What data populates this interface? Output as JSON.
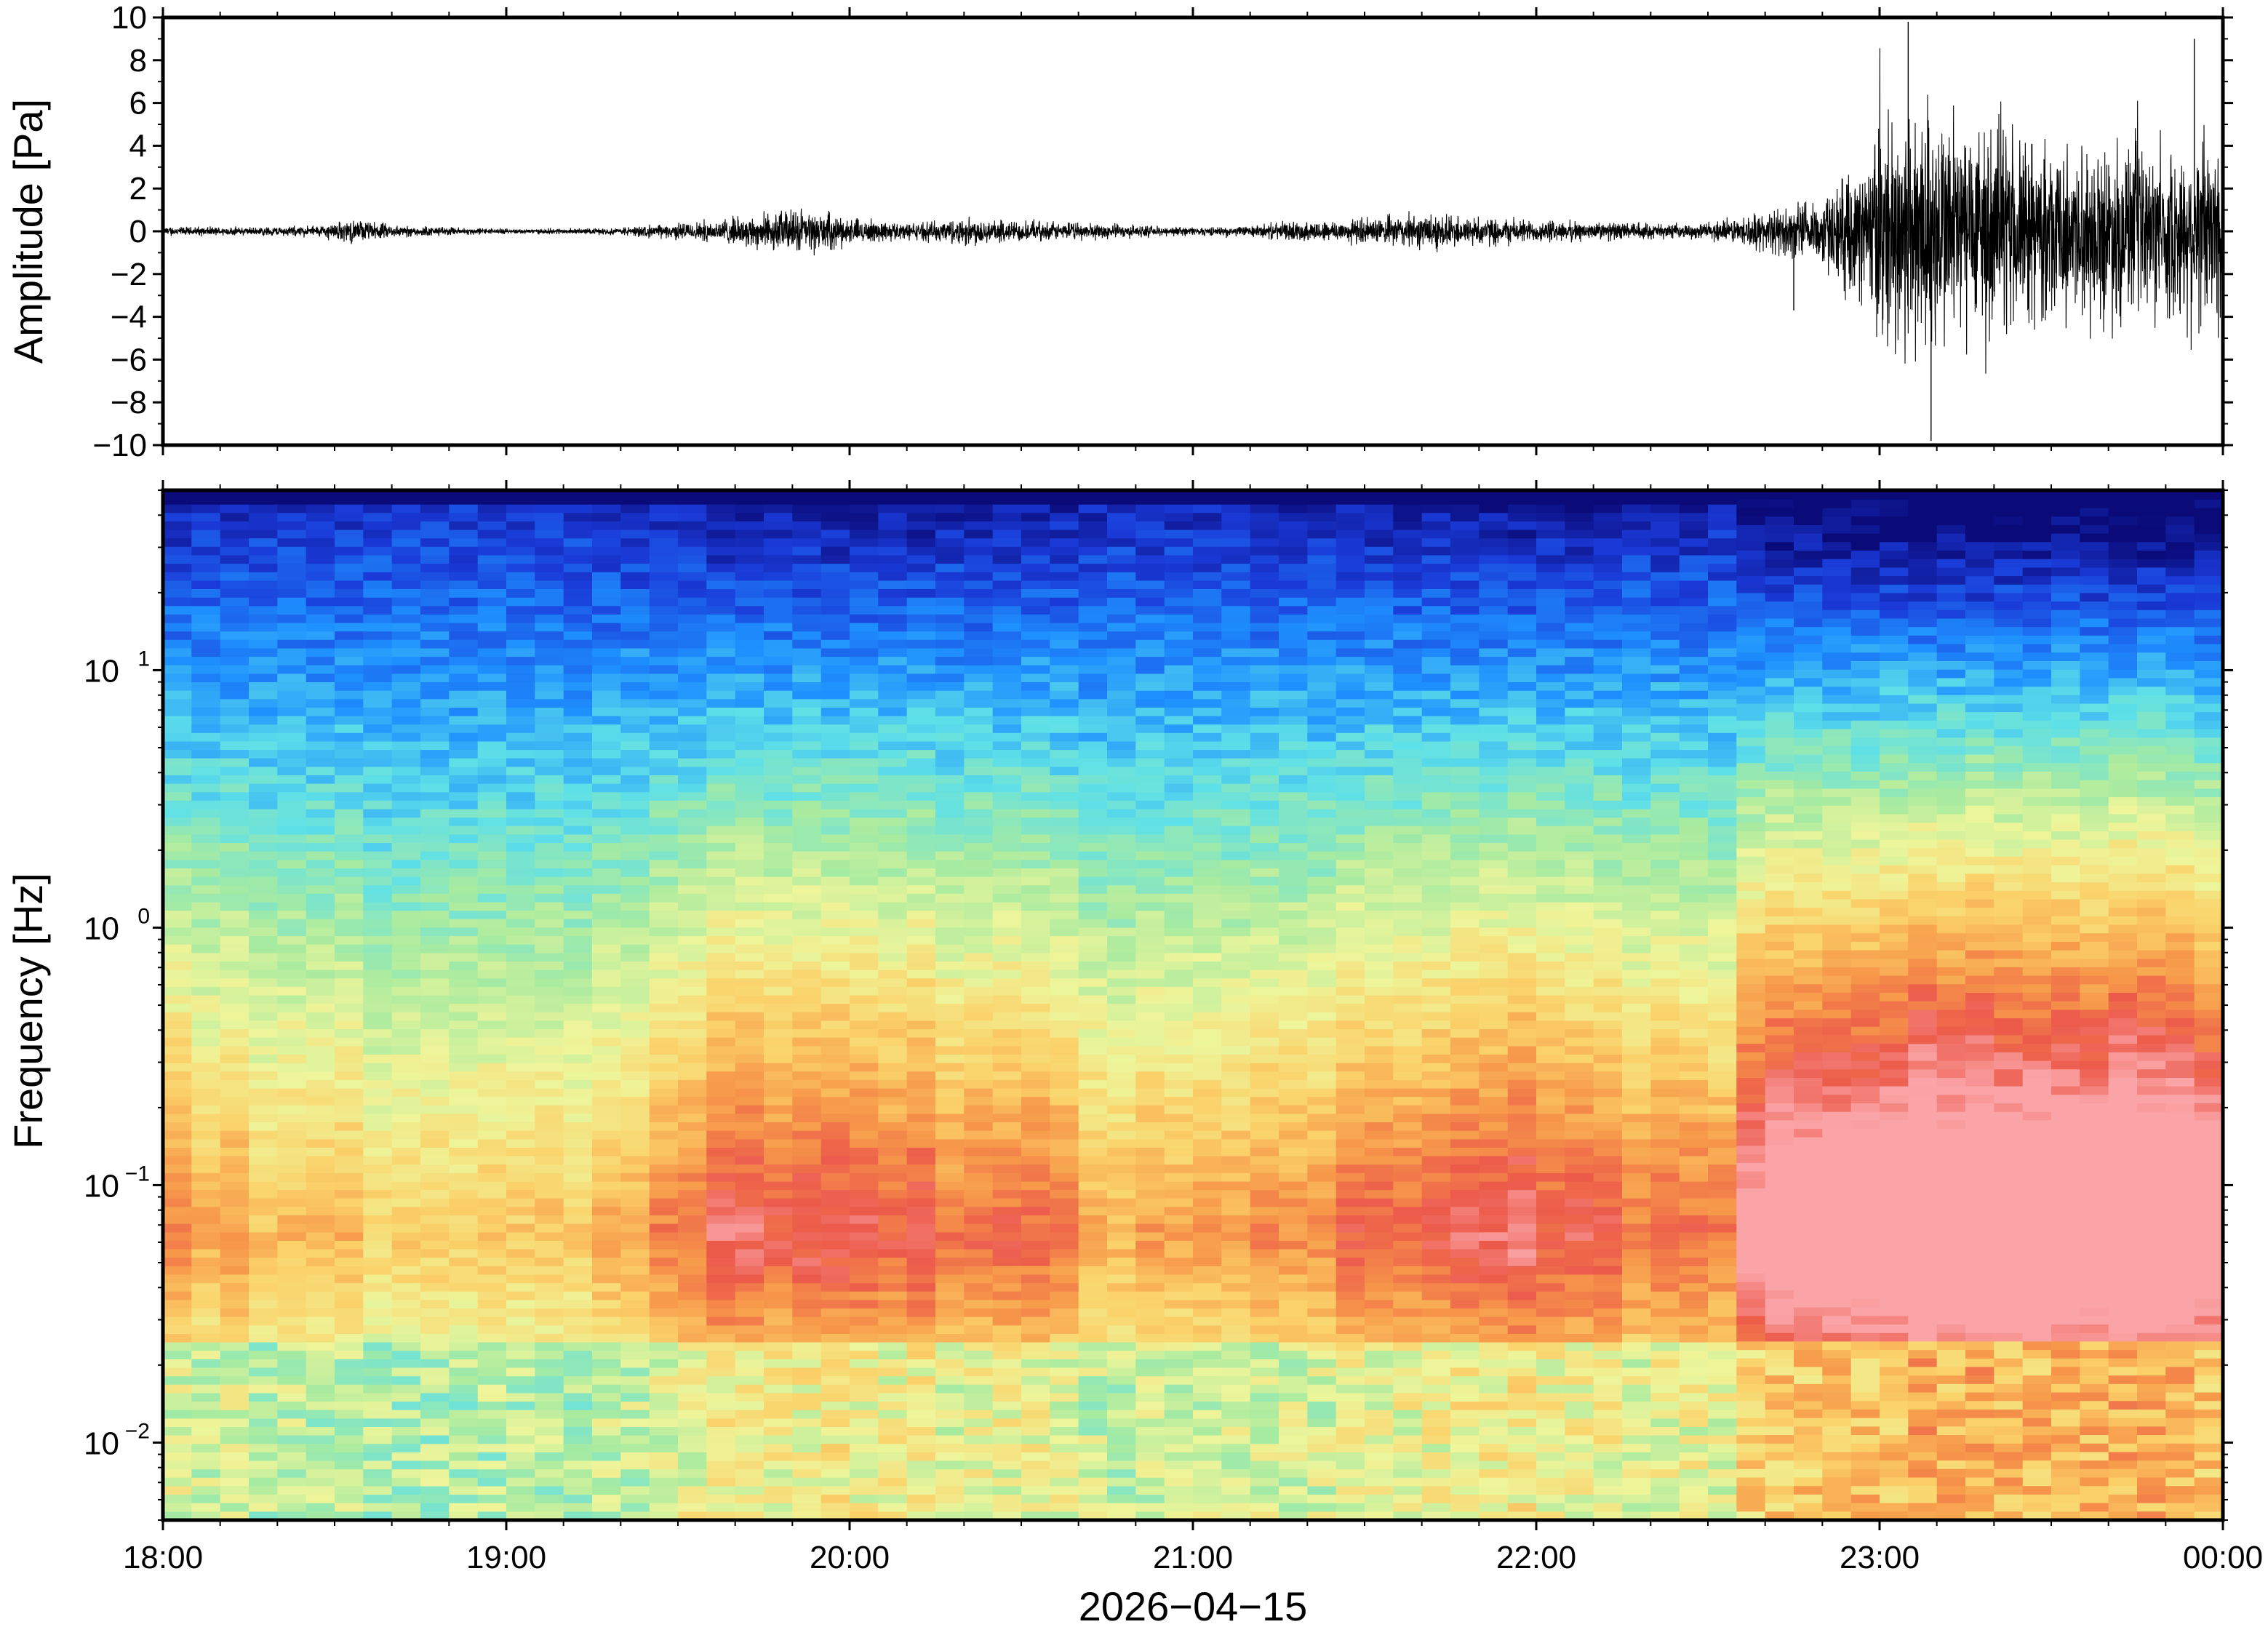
{
  "chart_data": [
    {
      "type": "line",
      "panel": "waveform",
      "title": "",
      "xlabel": "",
      "ylabel": "Amplitude [Pa]",
      "ylim": [
        -10,
        10
      ],
      "y_ticks": [
        10,
        8,
        6,
        4,
        2,
        0,
        -2,
        -4,
        -6,
        -8,
        -10
      ],
      "y_tick_labels": [
        "10",
        "8",
        "6",
        "4",
        "2",
        "0",
        "−2",
        "−4",
        "−6",
        "−8",
        "−10"
      ],
      "x_range": [
        "18:00",
        "00:00"
      ],
      "envelope": {
        "x_hours": [
          0.0,
          0.25,
          0.45,
          0.55,
          0.7,
          1.0,
          1.3,
          1.5,
          1.7,
          1.85,
          2.0,
          2.2,
          2.35,
          2.5,
          2.7,
          2.9,
          3.1,
          3.3,
          3.5,
          3.7,
          3.9,
          4.1,
          4.3,
          4.45,
          4.6,
          4.75,
          4.85,
          4.95,
          5.0,
          5.1,
          5.3,
          5.5,
          5.7,
          5.85,
          5.95,
          6.0
        ],
        "amplitude_pa": [
          0.3,
          0.25,
          0.35,
          0.7,
          0.35,
          0.15,
          0.2,
          0.5,
          0.9,
          1.4,
          0.8,
          0.5,
          0.9,
          0.6,
          0.5,
          0.3,
          0.25,
          0.6,
          0.8,
          1.1,
          0.8,
          0.6,
          0.5,
          0.4,
          0.9,
          1.6,
          2.5,
          4.0,
          7.0,
          8.5,
          7.0,
          5.0,
          5.5,
          5.0,
          6.5,
          6.0
        ]
      },
      "peaks": [
        {
          "time": "23:05",
          "value_pa": 9.8
        },
        {
          "time": "23:09",
          "value_pa": -9.8
        },
        {
          "time": "22:45",
          "value_pa": -3.7
        },
        {
          "time": "23:55",
          "value_pa": 9.0
        }
      ]
    },
    {
      "type": "heatmap",
      "panel": "spectrogram",
      "title": "",
      "ylabel": "Frequency [Hz]",
      "xlabel": "2026−04−15",
      "y_scale": "log",
      "ylim": [
        0.005,
        50
      ],
      "y_ticks": [
        0.01,
        0.1,
        1,
        10
      ],
      "y_tick_labels": [
        {
          "base": "10",
          "exp": "−2"
        },
        {
          "base": "10",
          "exp": "−1"
        },
        {
          "base": "10",
          "exp": "0"
        },
        {
          "base": "10",
          "exp": "1"
        }
      ],
      "x_ticks": [
        "18:00",
        "19:00",
        "20:00",
        "21:00",
        "22:00",
        "23:00",
        "00:00"
      ],
      "colormap": "spectral (blue = low power, red/pink = high power)",
      "colors": [
        "#0a0a78",
        "#1a3ad8",
        "#1e90ff",
        "#5ee0e8",
        "#a8eba0",
        "#eef59a",
        "#fbd26a",
        "#f79a4a",
        "#ec5a4a",
        "#fba5a8"
      ],
      "noise_floor_hours": [
        0.0,
        0.5,
        0.9,
        1.3,
        1.5,
        1.7,
        1.9,
        2.1,
        2.5,
        2.9,
        3.3,
        3.7,
        4.0,
        4.3,
        4.55,
        4.6,
        4.9,
        5.2,
        5.5,
        5.8,
        6.0
      ],
      "noise_floor_level": [
        0.35,
        0.2,
        0.2,
        0.25,
        0.45,
        0.5,
        0.55,
        0.48,
        0.4,
        0.25,
        0.35,
        0.5,
        0.55,
        0.4,
        0.35,
        0.7,
        0.85,
        0.95,
        0.95,
        0.9,
        0.85
      ]
    }
  ]
}
